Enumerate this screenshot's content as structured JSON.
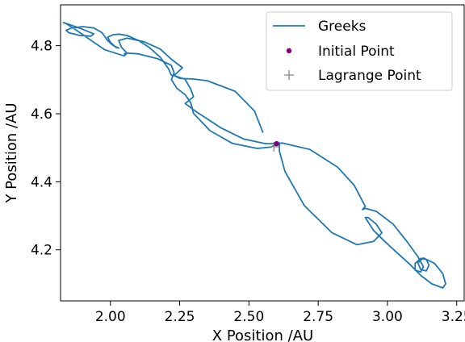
{
  "chart_data": {
    "type": "line",
    "xlabel": "X Position /AU",
    "ylabel": "Y Position /AU",
    "xlim": [
      1.82,
      3.28
    ],
    "ylim": [
      4.05,
      4.92
    ],
    "xticks": [
      2.0,
      2.25,
      2.5,
      2.75,
      3.0,
      3.25
    ],
    "xtick_labels": [
      "2.00",
      "2.25",
      "2.50",
      "2.75",
      "3.00",
      "3.25"
    ],
    "yticks": [
      4.2,
      4.4,
      4.6,
      4.8
    ],
    "ytick_labels": [
      "4.2",
      "4.4",
      "4.6",
      "4.8"
    ],
    "grid": false,
    "legend_position": "top-right",
    "colors": {
      "line": "#1f77b4",
      "initial": "#800080",
      "lagrange": "#808080"
    },
    "series": [
      {
        "name": "Greeks",
        "kind": "line",
        "x": [
          2.55,
          2.52,
          2.45,
          2.35,
          2.3,
          2.25,
          2.23,
          2.24,
          2.26,
          2.22,
          2.18,
          2.12,
          2.06,
          2.03,
          2.04,
          2.06,
          2.05,
          2.03,
          1.98,
          1.94,
          1.88,
          1.84,
          1.83,
          1.86,
          1.9,
          1.94,
          1.93,
          1.89,
          1.85,
          1.84,
          1.86,
          1.9,
          1.94,
          1.97,
          1.99,
          2.01,
          2.03,
          2.02,
          2.0,
          1.99,
          2.01,
          2.03,
          2.06,
          2.1,
          2.14,
          2.18,
          2.21,
          2.22,
          2.23,
          2.27,
          2.29,
          2.3,
          2.27,
          2.31,
          2.4,
          2.48,
          2.56,
          2.6,
          2.62,
          2.72,
          2.82,
          2.88,
          2.91,
          2.92,
          2.91,
          2.92,
          2.96,
          3.02,
          3.07,
          3.11,
          3.13,
          3.12,
          3.1,
          3.1,
          3.12,
          3.14,
          3.15,
          3.14,
          3.12,
          3.11,
          3.13,
          3.17,
          3.2,
          3.21,
          3.2,
          3.16,
          3.12,
          3.08,
          3.03,
          2.99,
          2.95,
          2.93,
          2.92,
          2.93,
          2.96,
          2.98,
          2.95,
          2.89,
          2.8,
          2.7,
          2.63,
          2.61,
          2.61,
          2.6,
          2.58,
          2.53,
          2.44,
          2.36,
          2.3,
          2.29,
          2.27,
          2.24,
          2.22,
          2.23,
          2.22,
          2.17,
          2.1,
          2.06,
          2.05
        ],
        "y": [
          4.546,
          4.608,
          4.666,
          4.697,
          4.702,
          4.704,
          4.712,
          4.72,
          4.735,
          4.76,
          4.79,
          4.812,
          4.822,
          4.815,
          4.795,
          4.778,
          4.77,
          4.775,
          4.788,
          4.81,
          4.844,
          4.865,
          4.868,
          4.86,
          4.848,
          4.835,
          4.828,
          4.83,
          4.838,
          4.845,
          4.852,
          4.856,
          4.852,
          4.838,
          4.815,
          4.8,
          4.793,
          4.795,
          4.81,
          4.825,
          4.832,
          4.834,
          4.83,
          4.816,
          4.795,
          4.766,
          4.732,
          4.713,
          4.712,
          4.701,
          4.672,
          4.65,
          4.63,
          4.606,
          4.558,
          4.526,
          4.512,
          4.512,
          4.514,
          4.495,
          4.443,
          4.39,
          4.343,
          4.328,
          4.318,
          4.322,
          4.313,
          4.276,
          4.225,
          4.18,
          4.15,
          4.135,
          4.14,
          4.16,
          4.175,
          4.172,
          4.155,
          4.138,
          4.142,
          4.162,
          4.176,
          4.16,
          4.13,
          4.1,
          4.088,
          4.1,
          4.125,
          4.158,
          4.195,
          4.225,
          4.257,
          4.282,
          4.295,
          4.295,
          4.275,
          4.25,
          4.225,
          4.215,
          4.25,
          4.33,
          4.43,
          4.49,
          4.514,
          4.51,
          4.502,
          4.498,
          4.513,
          4.55,
          4.601,
          4.632,
          4.656,
          4.675,
          4.7,
          4.72,
          4.742,
          4.762,
          4.776,
          4.778,
          4.776
        ]
      },
      {
        "name": "Initial Point",
        "kind": "marker",
        "x": [
          2.6
        ],
        "y": [
          4.512
        ]
      },
      {
        "name": "Lagrange Point",
        "kind": "plus",
        "x": [
          2.59
        ],
        "y": [
          4.503
        ]
      }
    ]
  }
}
